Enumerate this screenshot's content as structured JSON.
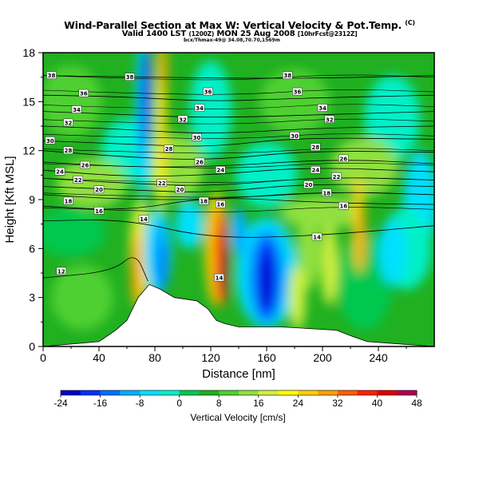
{
  "title": "Wind-Parallel Section at Max W: Vertical Velocity & Pot.Temp.",
  "title_mark": "(C)",
  "subtitle": "Valid 1400 LST",
  "subtitle_small1": "(1200Z)",
  "subtitle_mid": "MON 25 Aug 2008",
  "subtitle_small2": "[10hrFcst@2312Z]",
  "info": "bcx/Thmax-49@ 34.08,70.70,1569m",
  "chart_data": {
    "type": "heatmap",
    "xlabel": "Distance [nm]",
    "ylabel": "Height [Kft MSL]",
    "xlim": [
      0,
      280
    ],
    "ylim": [
      0,
      18
    ],
    "xticks": [
      "0",
      "40",
      "80",
      "120",
      "160",
      "200",
      "240"
    ],
    "yticks": [
      "0",
      "3",
      "6",
      "9",
      "12",
      "15",
      "18"
    ],
    "colorbar": {
      "label": "Vertical Velocity [cm/s]",
      "ticks": [
        "-24",
        "-16",
        "-8",
        "0",
        "8",
        "16",
        "24",
        "32",
        "40",
        "48"
      ],
      "levels": [
        -24,
        -20,
        -16,
        -12,
        -8,
        -4,
        0,
        4,
        8,
        12,
        16,
        20,
        24,
        28,
        32,
        36,
        40,
        44,
        48
      ],
      "colors": [
        "#0000c8",
        "#0030ff",
        "#0070ff",
        "#00b0ff",
        "#00e0ff",
        "#00f0c8",
        "#00c850",
        "#20b020",
        "#50d030",
        "#90e040",
        "#d0f040",
        "#ffff00",
        "#ffd000",
        "#ffa000",
        "#ff6000",
        "#ff2000",
        "#e00000",
        "#b00050",
        "#800080"
      ]
    },
    "terrain": [
      [
        0,
        0
      ],
      [
        40,
        0.3
      ],
      [
        52,
        1.0
      ],
      [
        60,
        1.6
      ],
      [
        68,
        3.0
      ],
      [
        76,
        3.8
      ],
      [
        84,
        3.5
      ],
      [
        94,
        3.0
      ],
      [
        110,
        2.8
      ],
      [
        118,
        2.3
      ],
      [
        124,
        1.6
      ],
      [
        130,
        1.4
      ],
      [
        140,
        1.2
      ],
      [
        170,
        1.2
      ],
      [
        210,
        1.0
      ],
      [
        222,
        0.6
      ],
      [
        232,
        0.3
      ],
      [
        280,
        0
      ]
    ],
    "contour_labels": [
      "38",
      "36",
      "34",
      "32",
      "30",
      "28",
      "26",
      "24",
      "22",
      "20",
      "18",
      "16",
      "14",
      "12"
    ],
    "potential_temperature_contours": [
      {
        "label": "38",
        "points": [
          [
            0,
            16.6
          ],
          [
            70,
            16.5
          ],
          [
            180,
            16.4
          ],
          [
            280,
            16.6
          ]
        ]
      },
      {
        "label": "36",
        "points": [
          [
            0,
            15.4
          ],
          [
            60,
            15.3
          ],
          [
            120,
            15.0
          ],
          [
            180,
            15.2
          ],
          [
            280,
            15.4
          ]
        ]
      },
      {
        "label": "34",
        "points": [
          [
            0,
            14.4
          ],
          [
            60,
            14.2
          ],
          [
            120,
            14.0
          ],
          [
            200,
            14.2
          ],
          [
            280,
            14.4
          ]
        ]
      },
      {
        "label": "32",
        "points": [
          [
            0,
            13.5
          ],
          [
            60,
            13.3
          ],
          [
            120,
            13.0
          ],
          [
            200,
            13.4
          ],
          [
            280,
            13.5
          ]
        ]
      },
      {
        "label": "30",
        "points": [
          [
            0,
            12.6
          ],
          [
            60,
            12.4
          ],
          [
            120,
            12.2
          ],
          [
            180,
            12.8
          ],
          [
            280,
            12.7
          ]
        ]
      },
      {
        "label": "28",
        "points": [
          [
            0,
            12.0
          ],
          [
            60,
            11.6
          ],
          [
            120,
            11.4
          ],
          [
            190,
            12.0
          ],
          [
            280,
            11.9
          ]
        ]
      },
      {
        "label": "26",
        "points": [
          [
            0,
            11.3
          ],
          [
            60,
            11.0
          ],
          [
            120,
            11.0
          ],
          [
            210,
            11.5
          ],
          [
            280,
            11.2
          ]
        ]
      },
      {
        "label": "24",
        "points": [
          [
            0,
            10.8
          ],
          [
            60,
            10.4
          ],
          [
            120,
            10.5
          ],
          [
            190,
            11.0
          ],
          [
            280,
            10.7
          ]
        ]
      },
      {
        "label": "22",
        "points": [
          [
            0,
            10.3
          ],
          [
            60,
            10.0
          ],
          [
            120,
            9.8
          ],
          [
            200,
            10.4
          ],
          [
            280,
            10.2
          ]
        ]
      },
      {
        "label": "20",
        "points": [
          [
            0,
            9.8
          ],
          [
            60,
            9.6
          ],
          [
            120,
            9.4
          ],
          [
            190,
            10.0
          ],
          [
            280,
            9.8
          ]
        ]
      },
      {
        "label": "18",
        "points": [
          [
            0,
            9.3
          ],
          [
            60,
            9.0
          ],
          [
            120,
            9.0
          ],
          [
            200,
            9.5
          ],
          [
            280,
            9.3
          ]
        ]
      },
      {
        "label": "16",
        "points": [
          [
            0,
            8.6
          ],
          [
            60,
            8.3
          ],
          [
            120,
            9.2
          ],
          [
            200,
            8.8
          ],
          [
            280,
            8.7
          ]
        ]
      },
      {
        "label": "14",
        "points": [
          [
            0,
            7.7
          ],
          [
            60,
            7.8
          ],
          [
            120,
            6.6
          ],
          [
            200,
            6.8
          ],
          [
            280,
            7.4
          ]
        ]
      },
      {
        "label": "12",
        "points": [
          [
            0,
            4.2
          ],
          [
            50,
            4.6
          ],
          [
            66,
            5.8
          ],
          [
            75,
            4.0
          ]
        ]
      }
    ]
  }
}
